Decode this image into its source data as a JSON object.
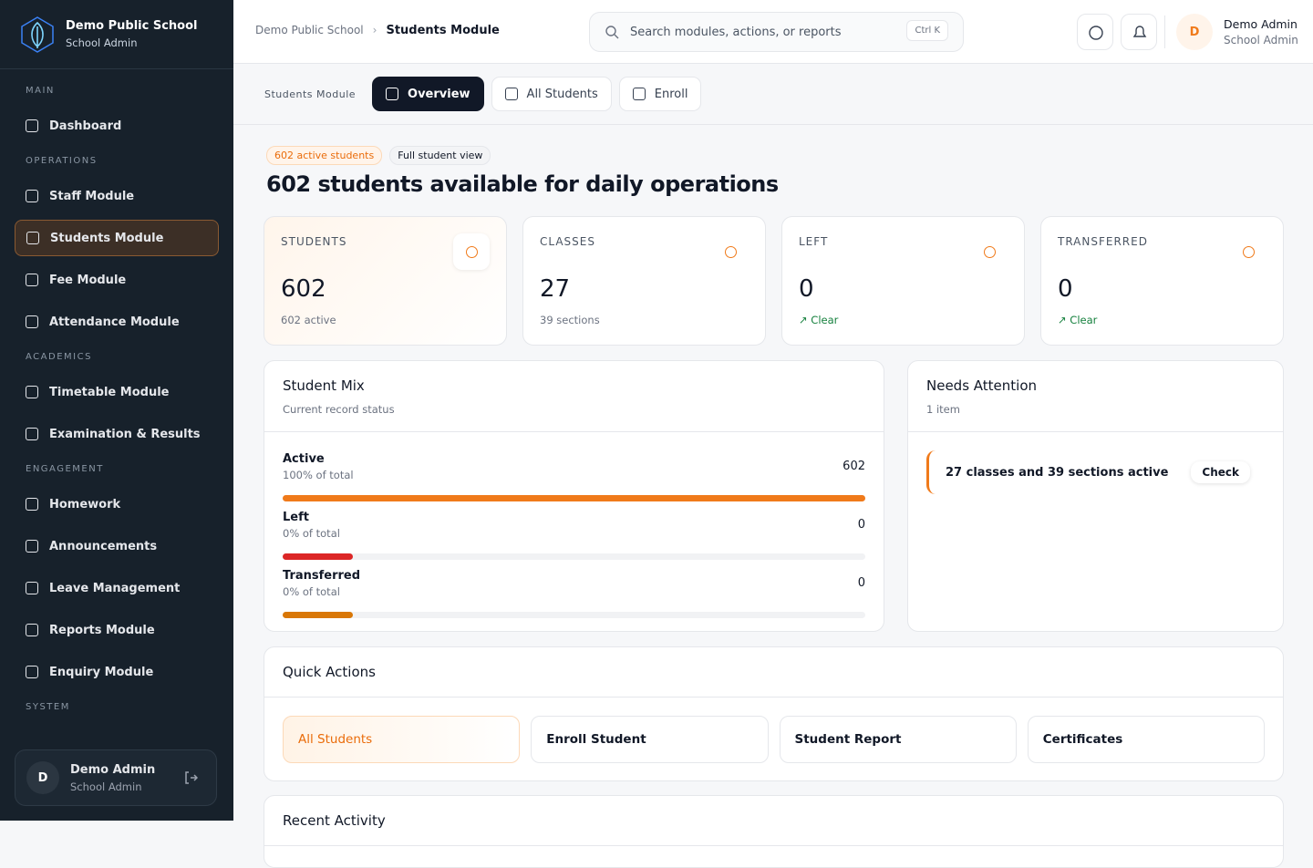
{
  "sidebar": {
    "brand": {
      "name": "Demo Public School",
      "role": "School Admin"
    },
    "sections": [
      {
        "label": "MAIN",
        "items": [
          {
            "label": "Dashboard"
          }
        ]
      },
      {
        "label": "OPERATIONS",
        "items": [
          {
            "label": "Staff Module"
          },
          {
            "label": "Students Module",
            "active": true
          },
          {
            "label": "Fee Module"
          },
          {
            "label": "Attendance Module"
          }
        ]
      },
      {
        "label": "ACADEMICS",
        "items": [
          {
            "label": "Timetable Module"
          },
          {
            "label": "Examination & Results"
          }
        ]
      },
      {
        "label": "ENGAGEMENT",
        "items": [
          {
            "label": "Homework"
          },
          {
            "label": "Announcements"
          },
          {
            "label": "Leave Management"
          },
          {
            "label": "Reports Module"
          },
          {
            "label": "Enquiry Module"
          }
        ]
      },
      {
        "label": "SYSTEM",
        "items": []
      }
    ],
    "user": {
      "initial": "D",
      "name": "Demo Admin",
      "role": "School Admin"
    }
  },
  "topbar": {
    "breadcrumb": [
      "Demo Public School",
      "Students Module"
    ],
    "search": {
      "placeholder": "Search modules, actions, or reports",
      "shortcut": "Ctrl K"
    },
    "user": {
      "initial": "D",
      "name": "Demo Admin",
      "role": "School Admin"
    }
  },
  "tabs": {
    "label": "Students Module",
    "items": [
      {
        "label": "Overview",
        "active": true
      },
      {
        "label": "All Students"
      },
      {
        "label": "Enroll"
      }
    ]
  },
  "hero": {
    "badges": [
      "602 active students",
      "Full student view"
    ],
    "title": "602 students available for daily operations"
  },
  "stats": [
    {
      "label": "STUDENTS",
      "value": 602,
      "note": "602 active",
      "highlight": true
    },
    {
      "label": "CLASSES",
      "value": 27,
      "note": "39 sections"
    },
    {
      "label": "LEFT",
      "value": 0,
      "note": "Clear",
      "trend": true
    },
    {
      "label": "TRANSFERRED",
      "value": 0,
      "note": "Clear",
      "trend": true
    }
  ],
  "student_mix": {
    "title": "Student Mix",
    "subtitle": "Current record status",
    "rows": [
      {
        "name": "Active",
        "share": "100% of total",
        "value": 602,
        "color": "#f07a1a"
      },
      {
        "name": "Left",
        "share": "0% of total",
        "value": 0,
        "color": "#dc2626"
      },
      {
        "name": "Transferred",
        "share": "0% of total",
        "value": 0,
        "color": "#d97706"
      }
    ]
  },
  "attention": {
    "title": "Needs Attention",
    "count": "1 item",
    "items": [
      {
        "text": "27 classes and 39 sections active",
        "action": "Check"
      }
    ]
  },
  "quick_actions": {
    "title": "Quick Actions",
    "items": [
      {
        "label": "All Students",
        "active": true
      },
      {
        "label": "Enroll Student"
      },
      {
        "label": "Student Report"
      },
      {
        "label": "Certificates"
      }
    ]
  },
  "recent": {
    "title": "Recent Activity"
  }
}
